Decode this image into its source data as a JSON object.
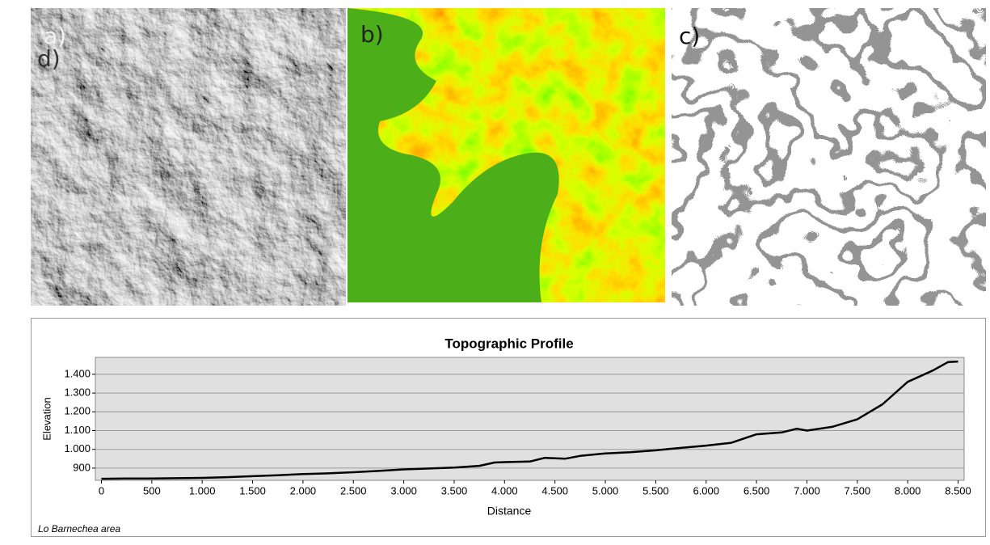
{
  "panels": {
    "labels": [
      "a)",
      "b)",
      "c)",
      "d)"
    ]
  },
  "chart_data": {
    "type": "line",
    "title": "Topographic Profile",
    "x_label": "Distance",
    "y_label": "Elevation",
    "annotations": [
      "Lo Barnechea area"
    ],
    "x": [
      0,
      250,
      500,
      750,
      1000,
      1250,
      1500,
      1750,
      2000,
      2250,
      2500,
      2750,
      3000,
      3250,
      3500,
      3750,
      3900,
      4000,
      4250,
      4400,
      4600,
      4750,
      5000,
      5250,
      5500,
      5750,
      6000,
      6250,
      6500,
      6750,
      6900,
      7000,
      7250,
      7500,
      7750,
      8000,
      8250,
      8400,
      8500
    ],
    "values": [
      843,
      845,
      845,
      846,
      848,
      852,
      857,
      862,
      868,
      872,
      878,
      885,
      893,
      898,
      903,
      912,
      930,
      932,
      935,
      955,
      950,
      965,
      978,
      985,
      995,
      1008,
      1020,
      1035,
      1080,
      1090,
      1110,
      1100,
      1120,
      1160,
      1240,
      1360,
      1420,
      1465,
      1468
    ],
    "color": "#000000",
    "xlim": [
      -60,
      8560
    ],
    "ylim": [
      835,
      1490
    ],
    "xticks": [
      0,
      500,
      {
        "value": 1000,
        "label": "1.000"
      },
      {
        "value": 1500,
        "label": "1.500"
      },
      {
        "value": 2000,
        "label": "2.000"
      },
      {
        "value": 2500,
        "label": "2.500"
      },
      {
        "value": 3000,
        "label": "3.000"
      },
      {
        "value": 3500,
        "label": "3.500"
      },
      {
        "value": 4000,
        "label": "4.000"
      },
      {
        "value": 4500,
        "label": "4.500"
      },
      {
        "value": 5000,
        "label": "5.000"
      },
      {
        "value": 5500,
        "label": "5.500"
      },
      {
        "value": 6000,
        "label": "6.000"
      },
      {
        "value": 6500,
        "label": "6.500"
      },
      {
        "value": 7000,
        "label": "7.000"
      },
      {
        "value": 7500,
        "label": "7.500"
      },
      {
        "value": 8000,
        "label": "8.000"
      },
      {
        "value": 8500,
        "label": "8.500"
      }
    ],
    "yticks": [
      900,
      {
        "value": 1000,
        "label": "1.000"
      },
      {
        "value": 1100,
        "label": "1.100"
      },
      {
        "value": 1200,
        "label": "1.200"
      },
      {
        "value": 1300,
        "label": "1.300"
      },
      {
        "value": 1400,
        "label": "1.400"
      }
    ],
    "grid": true,
    "plot_background": "#e0e0e0"
  }
}
